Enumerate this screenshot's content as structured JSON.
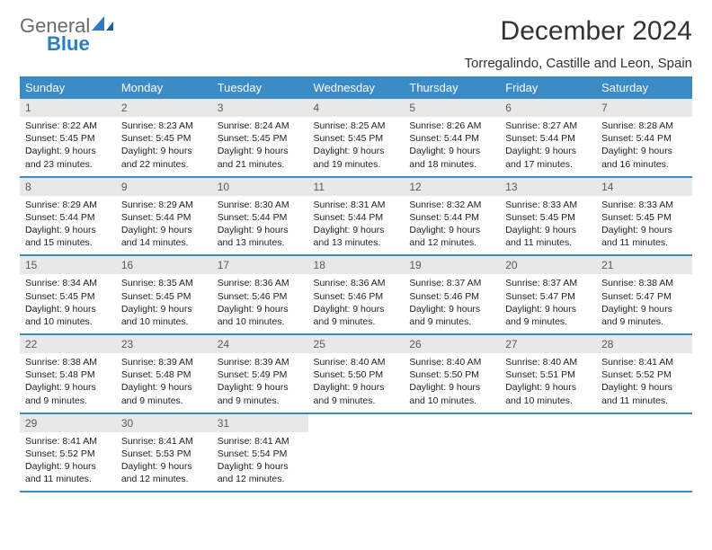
{
  "brand": {
    "general": "General",
    "blue": "Blue"
  },
  "title": "December 2024",
  "location": "Torregalindo, Castille and Leon, Spain",
  "colors": {
    "header_bg": "#3b8bc7",
    "header_text": "#ffffff",
    "daynum_bg": "#e8e8e8",
    "daynum_text": "#5a5a5a",
    "row_divider": "#3b8bc7",
    "logo_gray": "#6a6a6a",
    "logo_blue": "#2a7dc0"
  },
  "dayNames": [
    "Sunday",
    "Monday",
    "Tuesday",
    "Wednesday",
    "Thursday",
    "Friday",
    "Saturday"
  ],
  "weeks": [
    [
      {
        "n": "1",
        "sr": "8:22 AM",
        "ss": "5:45 PM",
        "d": "9 hours and 23 minutes."
      },
      {
        "n": "2",
        "sr": "8:23 AM",
        "ss": "5:45 PM",
        "d": "9 hours and 22 minutes."
      },
      {
        "n": "3",
        "sr": "8:24 AM",
        "ss": "5:45 PM",
        "d": "9 hours and 21 minutes."
      },
      {
        "n": "4",
        "sr": "8:25 AM",
        "ss": "5:45 PM",
        "d": "9 hours and 19 minutes."
      },
      {
        "n": "5",
        "sr": "8:26 AM",
        "ss": "5:44 PM",
        "d": "9 hours and 18 minutes."
      },
      {
        "n": "6",
        "sr": "8:27 AM",
        "ss": "5:44 PM",
        "d": "9 hours and 17 minutes."
      },
      {
        "n": "7",
        "sr": "8:28 AM",
        "ss": "5:44 PM",
        "d": "9 hours and 16 minutes."
      }
    ],
    [
      {
        "n": "8",
        "sr": "8:29 AM",
        "ss": "5:44 PM",
        "d": "9 hours and 15 minutes."
      },
      {
        "n": "9",
        "sr": "8:29 AM",
        "ss": "5:44 PM",
        "d": "9 hours and 14 minutes."
      },
      {
        "n": "10",
        "sr": "8:30 AM",
        "ss": "5:44 PM",
        "d": "9 hours and 13 minutes."
      },
      {
        "n": "11",
        "sr": "8:31 AM",
        "ss": "5:44 PM",
        "d": "9 hours and 13 minutes."
      },
      {
        "n": "12",
        "sr": "8:32 AM",
        "ss": "5:44 PM",
        "d": "9 hours and 12 minutes."
      },
      {
        "n": "13",
        "sr": "8:33 AM",
        "ss": "5:45 PM",
        "d": "9 hours and 11 minutes."
      },
      {
        "n": "14",
        "sr": "8:33 AM",
        "ss": "5:45 PM",
        "d": "9 hours and 11 minutes."
      }
    ],
    [
      {
        "n": "15",
        "sr": "8:34 AM",
        "ss": "5:45 PM",
        "d": "9 hours and 10 minutes."
      },
      {
        "n": "16",
        "sr": "8:35 AM",
        "ss": "5:45 PM",
        "d": "9 hours and 10 minutes."
      },
      {
        "n": "17",
        "sr": "8:36 AM",
        "ss": "5:46 PM",
        "d": "9 hours and 10 minutes."
      },
      {
        "n": "18",
        "sr": "8:36 AM",
        "ss": "5:46 PM",
        "d": "9 hours and 9 minutes."
      },
      {
        "n": "19",
        "sr": "8:37 AM",
        "ss": "5:46 PM",
        "d": "9 hours and 9 minutes."
      },
      {
        "n": "20",
        "sr": "8:37 AM",
        "ss": "5:47 PM",
        "d": "9 hours and 9 minutes."
      },
      {
        "n": "21",
        "sr": "8:38 AM",
        "ss": "5:47 PM",
        "d": "9 hours and 9 minutes."
      }
    ],
    [
      {
        "n": "22",
        "sr": "8:38 AM",
        "ss": "5:48 PM",
        "d": "9 hours and 9 minutes."
      },
      {
        "n": "23",
        "sr": "8:39 AM",
        "ss": "5:48 PM",
        "d": "9 hours and 9 minutes."
      },
      {
        "n": "24",
        "sr": "8:39 AM",
        "ss": "5:49 PM",
        "d": "9 hours and 9 minutes."
      },
      {
        "n": "25",
        "sr": "8:40 AM",
        "ss": "5:50 PM",
        "d": "9 hours and 9 minutes."
      },
      {
        "n": "26",
        "sr": "8:40 AM",
        "ss": "5:50 PM",
        "d": "9 hours and 10 minutes."
      },
      {
        "n": "27",
        "sr": "8:40 AM",
        "ss": "5:51 PM",
        "d": "9 hours and 10 minutes."
      },
      {
        "n": "28",
        "sr": "8:41 AM",
        "ss": "5:52 PM",
        "d": "9 hours and 11 minutes."
      }
    ],
    [
      {
        "n": "29",
        "sr": "8:41 AM",
        "ss": "5:52 PM",
        "d": "9 hours and 11 minutes."
      },
      {
        "n": "30",
        "sr": "8:41 AM",
        "ss": "5:53 PM",
        "d": "9 hours and 12 minutes."
      },
      {
        "n": "31",
        "sr": "8:41 AM",
        "ss": "5:54 PM",
        "d": "9 hours and 12 minutes."
      },
      null,
      null,
      null,
      null
    ]
  ],
  "labels": {
    "sunrise": "Sunrise: ",
    "sunset": "Sunset: ",
    "daylight": "Daylight: "
  }
}
